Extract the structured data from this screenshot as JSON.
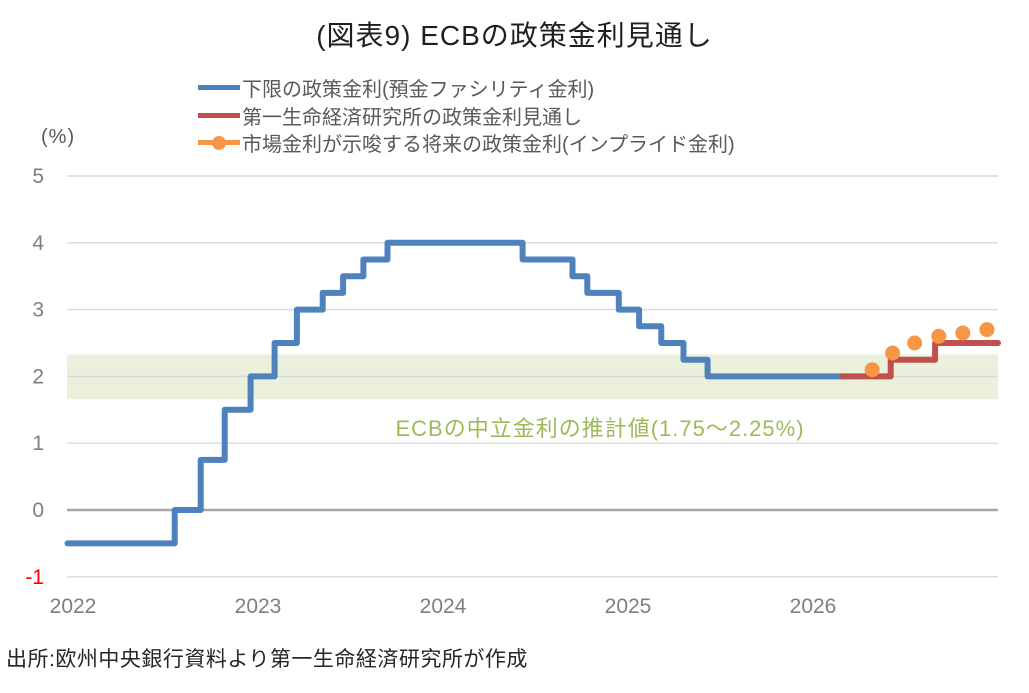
{
  "title": "(図表9) ECBの政策金利見通し",
  "legend": {
    "items": [
      {
        "label": "下限の政策金利(預金ファシリティ金利)",
        "color": "#4F81BD",
        "marker": "line"
      },
      {
        "label": "第一生命経済研究所の政策金利見通し",
        "color": "#C0504D",
        "marker": "line"
      },
      {
        "label": "市場金利が示唆する将来の政策金利(インプライド金利)",
        "color": "#F79646",
        "marker": "line-dot"
      }
    ]
  },
  "source": "出所:欧州中央銀行資料より第一生命経済研究所が作成",
  "chart_data": {
    "type": "line",
    "title": "(図表9) ECBの政策金利見通し",
    "x_axis": {
      "ticks": [
        "2022",
        "2023",
        "2024",
        "2025",
        "2026"
      ],
      "tick_years": [
        2022,
        2023,
        2024,
        2025,
        2026
      ],
      "range": [
        2021.97,
        2027.0
      ]
    },
    "y_axis": {
      "unit": "(%)",
      "ticks": [
        "5",
        "4",
        "3",
        "2",
        "1",
        "0",
        "-1"
      ],
      "tick_values": [
        5,
        4,
        3,
        2,
        1,
        0,
        -1
      ],
      "range": [
        -1,
        5
      ],
      "negative_tick_color": "#FF0000",
      "tick_color": "#7F7F7F"
    },
    "grid": {
      "color": "#D9D9D9",
      "zero_line_color": "#A6A6A6"
    },
    "band": {
      "label": "ECBの中立金利の推計値(1.75〜2.25%)",
      "min": 1.75,
      "max": 2.25,
      "draw_min": 1.66,
      "draw_max": 2.33,
      "fill": "#EAF0DC",
      "label_color": "#9BBB59"
    },
    "series": [
      {
        "name": "下限の政策金利(預金ファシリティ金利)",
        "type": "step",
        "color": "#4F81BD",
        "points": [
          [
            2021.97,
            -0.5
          ],
          [
            2022.55,
            0.0
          ],
          [
            2022.69,
            0.75
          ],
          [
            2022.82,
            1.5
          ],
          [
            2022.96,
            2.0
          ],
          [
            2023.09,
            2.5
          ],
          [
            2023.21,
            3.0
          ],
          [
            2023.35,
            3.25
          ],
          [
            2023.46,
            3.5
          ],
          [
            2023.57,
            3.75
          ],
          [
            2023.7,
            4.0
          ],
          [
            2024.43,
            3.75
          ],
          [
            2024.7,
            3.5
          ],
          [
            2024.78,
            3.25
          ],
          [
            2024.95,
            3.0
          ],
          [
            2025.06,
            2.75
          ],
          [
            2025.18,
            2.5
          ],
          [
            2025.3,
            2.25
          ],
          [
            2025.43,
            2.0
          ]
        ],
        "end_t": 2026.17
      },
      {
        "name": "第一生命経済研究所の政策金利見通し",
        "type": "step",
        "color": "#C0504D",
        "points": [
          [
            2026.16,
            2.0
          ],
          [
            2026.42,
            2.25
          ],
          [
            2026.66,
            2.5
          ]
        ],
        "end_t": 2027.0
      },
      {
        "name": "市場金利が示唆する将来の政策金利(インプライド金利)",
        "type": "points",
        "color": "#F79646",
        "points": [
          [
            2026.32,
            2.1
          ],
          [
            2026.43,
            2.35
          ],
          [
            2026.55,
            2.5
          ],
          [
            2026.68,
            2.6
          ],
          [
            2026.81,
            2.65
          ],
          [
            2026.94,
            2.7
          ]
        ]
      }
    ]
  }
}
